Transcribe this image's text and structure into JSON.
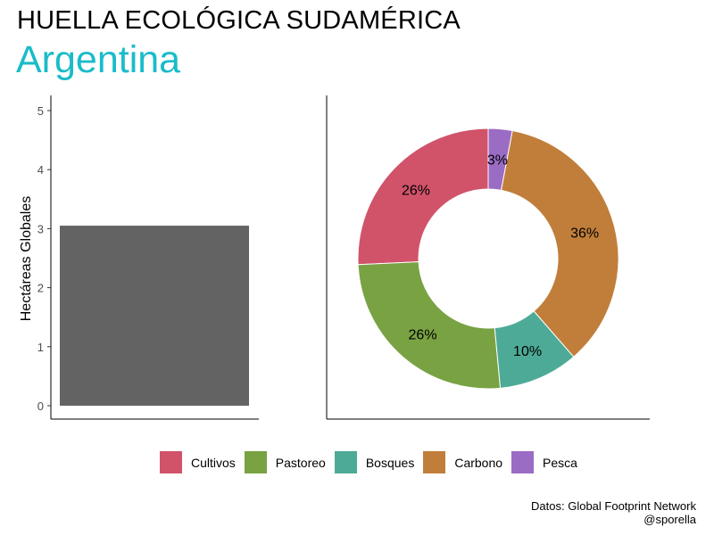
{
  "title": "HUELLA ECOLÓGICA SUDAMÉRICA",
  "subtitle": "Argentina",
  "caption": {
    "line1": "Datos: Global Footprint Network",
    "line2": "@sporella"
  },
  "colors": {
    "subtitle": "#1ABCC9",
    "bar": "#636363"
  },
  "chart_data": [
    {
      "type": "bar",
      "ylabel": "Hectáreas Globales",
      "ylim": [
        0,
        5
      ],
      "yticks": [
        "0",
        "1",
        "2",
        "3",
        "4",
        "5"
      ],
      "values": [
        3.05
      ],
      "color": "#636363"
    },
    {
      "type": "pie",
      "donut": true,
      "slices": [
        {
          "name": "Cultivos",
          "value": 26,
          "label": "26%",
          "color": "#D0536A"
        },
        {
          "name": "Pastoreo",
          "value": 26,
          "label": "26%",
          "color": "#79A243"
        },
        {
          "name": "Bosques",
          "value": 10,
          "label": "10%",
          "color": "#4DAA96"
        },
        {
          "name": "Carbono",
          "value": 36,
          "label": "36%",
          "color": "#C17E3A"
        },
        {
          "name": "Pesca",
          "value": 3,
          "label": "3%",
          "color": "#9B6CC4"
        }
      ],
      "legend": "bottom"
    }
  ]
}
